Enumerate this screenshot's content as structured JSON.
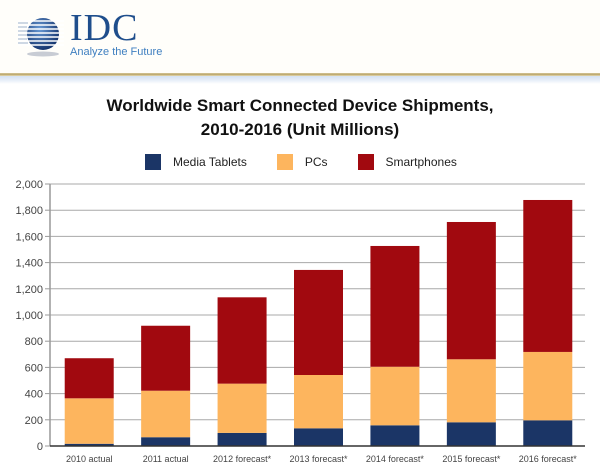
{
  "header": {
    "logo_text": "IDC",
    "tagline": "Analyze the Future"
  },
  "chart_data": {
    "type": "bar",
    "stacked": true,
    "title": "Worldwide Smart Connected Device Shipments,",
    "subtitle": "2010-2016 (Unit Millions)",
    "xlabel": "",
    "ylabel": "",
    "ylim": [
      0,
      2000
    ],
    "yticks": [
      0,
      200,
      400,
      600,
      800,
      1000,
      1200,
      1400,
      1600,
      1800,
      2000
    ],
    "ytick_labels": [
      "0",
      "200",
      "400",
      "600",
      "800",
      "1,000",
      "1,200",
      "1,400",
      "1,600",
      "1,800",
      "2,000"
    ],
    "grid": true,
    "legend_position": "top",
    "categories": [
      "2010 actual",
      "2011 actual",
      "2012 forecast*",
      "2013 forecast*",
      "2014 forecast*",
      "2015 forecast*",
      "2016 forecast*"
    ],
    "series": [
      {
        "name": "Media Tablets",
        "color": "#1b3566",
        "values": [
          17,
          67,
          100,
          135,
          158,
          181,
          196
        ]
      },
      {
        "name": "PCs",
        "color": "#fdb55e",
        "values": [
          347,
          355,
          376,
          407,
          447,
          481,
          522
        ]
      },
      {
        "name": "Smartphones",
        "color": "#a1090f",
        "values": [
          306,
          496,
          659,
          802,
          922,
          1048,
          1160
        ]
      }
    ]
  }
}
